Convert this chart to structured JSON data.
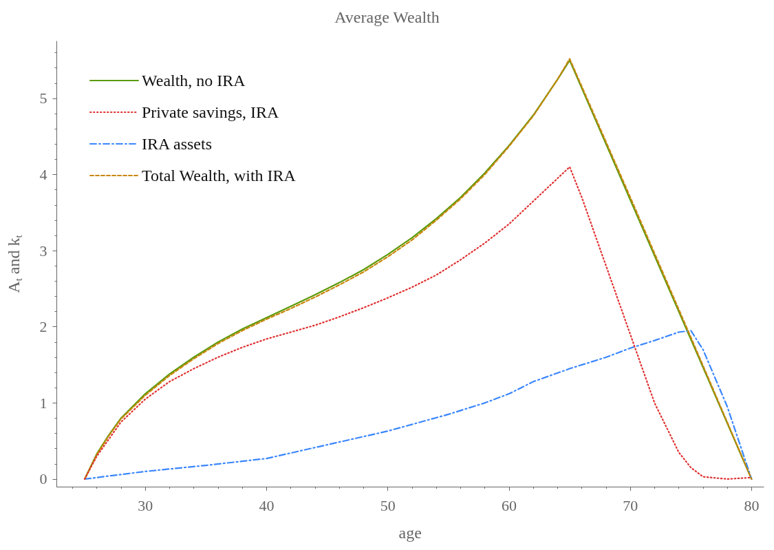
{
  "chart_data": {
    "type": "line",
    "title": "Average Wealth",
    "xlabel": "age",
    "ylabel": "A$_{t}$ and k$_{t}$",
    "xlim": [
      22.7,
      81
    ],
    "xticks": [
      30,
      40,
      50,
      60,
      70,
      80
    ],
    "ylim": [
      -0.1,
      5.75
    ],
    "yticks": [
      0,
      1,
      2,
      3,
      4,
      5
    ],
    "grid": false,
    "legend": "top left",
    "marker": "none",
    "series": [
      {
        "name": "Wealth, no IRA",
        "color": "#5a9a08",
        "line_style": "solid",
        "x": [
          25,
          26,
          27,
          28,
          30,
          32,
          34,
          36,
          38,
          40,
          42,
          44,
          46,
          48,
          50,
          52,
          54,
          56,
          58,
          60,
          62,
          64,
          65,
          80
        ],
        "values": [
          0,
          0.33,
          0.58,
          0.8,
          1.12,
          1.38,
          1.6,
          1.8,
          1.97,
          2.12,
          2.27,
          2.42,
          2.58,
          2.75,
          2.95,
          3.17,
          3.42,
          3.7,
          4.02,
          4.38,
          4.78,
          5.25,
          5.5,
          0
        ]
      },
      {
        "name": "Private savings, IRA",
        "color": "#e03030",
        "line_style": "dotted",
        "x": [
          25,
          26,
          28,
          30,
          32,
          34,
          36,
          38,
          40,
          42,
          44,
          46,
          48,
          50,
          52,
          54,
          56,
          58,
          60,
          62,
          64,
          65,
          66,
          68,
          70,
          72,
          74,
          75,
          76,
          78,
          80
        ],
        "values": [
          0,
          0.3,
          0.75,
          1.05,
          1.28,
          1.45,
          1.6,
          1.73,
          1.84,
          1.93,
          2.02,
          2.13,
          2.25,
          2.38,
          2.52,
          2.68,
          2.88,
          3.1,
          3.35,
          3.65,
          3.95,
          4.1,
          3.7,
          2.8,
          1.9,
          1.0,
          0.35,
          0.15,
          0.03,
          0,
          0.02
        ]
      },
      {
        "name": "IRA assets",
        "color": "#3a86ff",
        "line_style": "dashdot",
        "x": [
          25,
          30,
          35,
          40,
          45,
          50,
          55,
          58,
          60,
          62,
          65,
          68,
          70,
          72,
          74,
          75,
          76,
          78,
          80
        ],
        "values": [
          0,
          0.1,
          0.18,
          0.27,
          0.45,
          0.63,
          0.85,
          1.0,
          1.12,
          1.28,
          1.45,
          1.6,
          1.72,
          1.82,
          1.93,
          1.95,
          1.7,
          0.95,
          0
        ]
      },
      {
        "name": "Total Wealth, with IRA",
        "color": "#c8860a",
        "line_style": "dashed",
        "x": [
          25,
          26,
          27,
          28,
          30,
          32,
          34,
          36,
          38,
          40,
          42,
          44,
          46,
          48,
          50,
          52,
          54,
          56,
          58,
          60,
          62,
          64,
          65,
          70,
          75,
          80
        ],
        "values": [
          0,
          0.32,
          0.57,
          0.79,
          1.1,
          1.36,
          1.58,
          1.78,
          1.95,
          2.1,
          2.24,
          2.39,
          2.55,
          2.72,
          2.92,
          3.14,
          3.4,
          3.68,
          4.0,
          4.37,
          4.77,
          5.25,
          5.52,
          3.7,
          1.86,
          0
        ]
      }
    ]
  }
}
